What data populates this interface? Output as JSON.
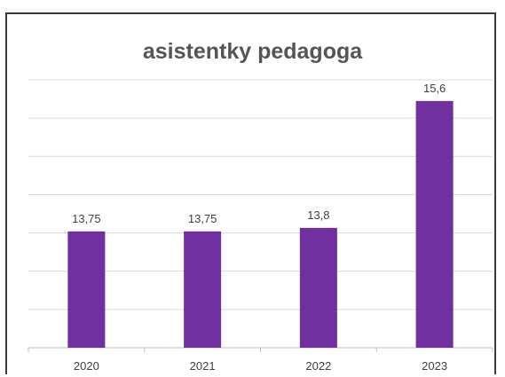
{
  "chart_data": {
    "type": "bar",
    "title": "asistentky pedagoga",
    "categories": [
      "2020",
      "2021",
      "2022",
      "2023"
    ],
    "values": [
      13.75,
      13.75,
      13.8,
      15.6
    ],
    "data_labels": [
      "13,75",
      "13,75",
      "13,8",
      "15,6"
    ],
    "bar_color": "#7030a0",
    "grid": true,
    "legend": "none"
  }
}
